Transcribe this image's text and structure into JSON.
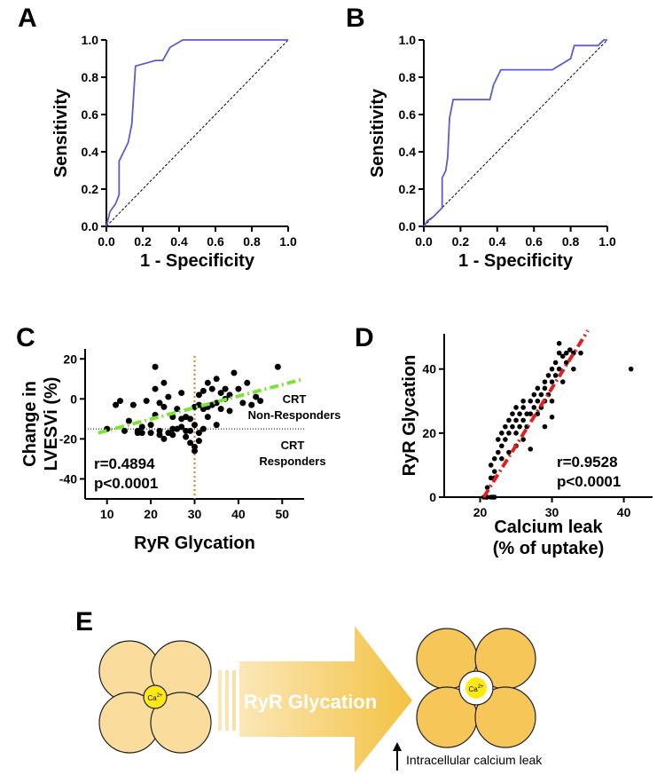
{
  "chart_data": [
    {
      "type": "line",
      "panel": "A",
      "xlabel": "1 - Specificity",
      "ylabel": "Sensitivity",
      "color": "#5b5bd6",
      "x": [
        0,
        0.02,
        0.05,
        0.07,
        0.07,
        0.12,
        0.14,
        0.16,
        0.27,
        0.31,
        0.35,
        0.42,
        1
      ],
      "values": [
        0,
        0.08,
        0.12,
        0.17,
        0.35,
        0.45,
        0.55,
        0.86,
        0.89,
        0.89,
        0.96,
        1,
        1
      ],
      "xlim": [
        0,
        1
      ],
      "ylim": [
        0,
        1
      ],
      "xticks": [
        {
          "value": 0,
          "label": "0.0"
        },
        {
          "value": 0.2,
          "label": "0.2"
        },
        {
          "value": 0.4,
          "label": "0.4"
        },
        {
          "value": 0.6,
          "label": "0.6"
        },
        {
          "value": 0.8,
          "label": "0.8"
        },
        {
          "value": 1,
          "label": "1.0"
        }
      ],
      "yticks": [
        {
          "value": 0,
          "label": "0.0"
        },
        {
          "value": 0.2,
          "label": "0.2"
        },
        {
          "value": 0.4,
          "label": "0.4"
        },
        {
          "value": 0.6,
          "label": "0.6"
        },
        {
          "value": 0.8,
          "label": "0.8"
        },
        {
          "value": 1,
          "label": "1.0"
        }
      ]
    },
    {
      "type": "line",
      "panel": "B",
      "xlabel": "1 - Specificity",
      "ylabel": "Sensitivity",
      "color": "#5b5bd6",
      "x": [
        0,
        0.02,
        0.05,
        0.08,
        0.1,
        0.1,
        0.12,
        0.13,
        0.14,
        0.16,
        0.36,
        0.38,
        0.42,
        0.7,
        0.75,
        0.8,
        0.82,
        0.95,
        0.98,
        1
      ],
      "values": [
        0,
        0.03,
        0.05,
        0.08,
        0.1,
        0.26,
        0.3,
        0.37,
        0.58,
        0.68,
        0.68,
        0.76,
        0.84,
        0.84,
        0.87,
        0.9,
        0.97,
        0.97,
        1,
        1
      ],
      "xlim": [
        0,
        1
      ],
      "ylim": [
        0,
        1
      ],
      "xticks": [
        {
          "value": 0,
          "label": "0.0"
        },
        {
          "value": 0.2,
          "label": "0.2"
        },
        {
          "value": 0.4,
          "label": "0.4"
        },
        {
          "value": 0.6,
          "label": "0.6"
        },
        {
          "value": 0.8,
          "label": "0.8"
        },
        {
          "value": 1,
          "label": "1.0"
        }
      ],
      "yticks": [
        {
          "value": 0,
          "label": "0.0"
        },
        {
          "value": 0.2,
          "label": "0.2"
        },
        {
          "value": 0.4,
          "label": "0.4"
        },
        {
          "value": 0.6,
          "label": "0.6"
        },
        {
          "value": 0.8,
          "label": "0.8"
        },
        {
          "value": 1,
          "label": "1.0"
        }
      ]
    },
    {
      "type": "scatter",
      "panel": "C",
      "xlabel": [
        "RyR Glycation"
      ],
      "ylabel": [
        "Change in",
        "LVESVi (%)"
      ],
      "color": "#000000",
      "x": [
        10,
        12,
        13,
        14,
        15,
        16,
        17,
        17,
        18,
        18,
        19,
        20,
        20,
        21,
        21,
        21,
        22,
        22,
        22,
        23,
        23,
        23,
        24,
        24,
        25,
        25,
        25,
        26,
        26,
        27,
        27,
        27,
        28,
        28,
        28,
        29,
        29,
        29,
        30,
        30,
        30,
        30,
        31,
        31,
        31,
        31,
        32,
        32,
        32,
        33,
        33,
        33,
        34,
        34,
        35,
        35,
        35,
        36,
        36,
        37,
        37,
        38,
        38,
        39,
        40,
        41,
        42,
        43,
        44,
        45,
        49
      ],
      "values": [
        -15,
        -3,
        -1,
        -16,
        -11,
        -3,
        -16,
        -17,
        -14,
        -17,
        -1,
        -17,
        -13,
        16,
        5,
        -8,
        -2,
        -16,
        -18,
        8,
        -4,
        -20,
        1,
        -17,
        -9,
        -15,
        -18,
        -5,
        -15,
        -14,
        -10,
        3,
        -9,
        -16,
        -19,
        -10,
        -16,
        -22,
        -13,
        -26,
        -24,
        -4,
        2,
        -17,
        -21,
        -3,
        4,
        -5,
        -15,
        -4,
        -9,
        8,
        5,
        -3,
        10,
        -2,
        -13,
        3,
        -5,
        5,
        0,
        2,
        -6,
        13,
        5,
        -2,
        8,
        -3,
        1,
        -1,
        16
      ],
      "trend_line": {
        "color": "#7de33a",
        "x": [
          8,
          55
        ],
        "y": [
          -17,
          10
        ]
      },
      "reference_lines": {
        "x": 30,
        "y": -15,
        "x_color": "#e07b1a",
        "y_color": "#000000"
      },
      "xlim": [
        5,
        55
      ],
      "ylim": [
        -50,
        25
      ],
      "xticks": [
        10,
        20,
        30,
        40,
        50
      ],
      "yticks": [
        -40,
        -20,
        0,
        20
      ],
      "annotations": {
        "upper": [
          "CRT",
          "Non-Responders"
        ],
        "lower": [
          "CRT",
          "Responders"
        ],
        "stats": [
          "r=0.4894",
          "p<0.0001"
        ]
      }
    },
    {
      "type": "scatter",
      "panel": "D",
      "xlabel": [
        "Calcium leak",
        "(% of uptake)"
      ],
      "ylabel": [
        "RyR Glycation"
      ],
      "color": "#000000",
      "x": [
        20.5,
        21,
        21.5,
        22,
        20.8,
        21.8,
        21,
        21.5,
        22,
        22,
        22.5,
        22.5,
        23,
        23,
        23.5,
        23.5,
        24,
        24,
        24.5,
        24.5,
        25,
        25,
        25,
        25.5,
        25.5,
        26,
        26,
        26,
        26.5,
        26.5,
        27,
        27,
        27.5,
        27.5,
        28,
        28,
        28,
        28.5,
        28.5,
        29,
        29,
        29,
        29.5,
        29.5,
        30,
        30,
        30,
        30.5,
        30.5,
        31,
        31,
        31,
        31.5,
        31.5,
        32,
        32,
        33,
        33,
        34,
        27,
        29,
        30,
        41,
        22,
        23,
        24,
        25,
        26,
        21.5,
        32.5
      ],
      "values": [
        0,
        0,
        0,
        0,
        0,
        0,
        3,
        6,
        8,
        12,
        14,
        18,
        16,
        20,
        22,
        18,
        24,
        20,
        22,
        26,
        20,
        24,
        28,
        22,
        26,
        24,
        28,
        30,
        26,
        22,
        30,
        26,
        28,
        32,
        30,
        26,
        34,
        32,
        28,
        36,
        30,
        34,
        38,
        32,
        40,
        36,
        30,
        42,
        38,
        45,
        40,
        48,
        44,
        36,
        45,
        42,
        45,
        40,
        45,
        15,
        22,
        25,
        40,
        6,
        12,
        14,
        16,
        18,
        10,
        46
      ],
      "trend_line": {
        "color": "#e02020",
        "x": [
          20.5,
          35
        ],
        "y": [
          0,
          52
        ]
      },
      "xlim": [
        15,
        44
      ],
      "ylim": [
        0,
        51
      ],
      "xticks": [
        20,
        30,
        40
      ],
      "yticks": [
        0,
        20,
        40
      ],
      "annotations": {
        "stats": [
          "r=0.9528",
          "p<0.0001"
        ]
      }
    }
  ],
  "diagram": {
    "panel": "E",
    "arrow_label": "RyR Glycation",
    "ion_label": [
      "Ca",
      "2+"
    ],
    "caption": "Intracellular calcium leak"
  }
}
